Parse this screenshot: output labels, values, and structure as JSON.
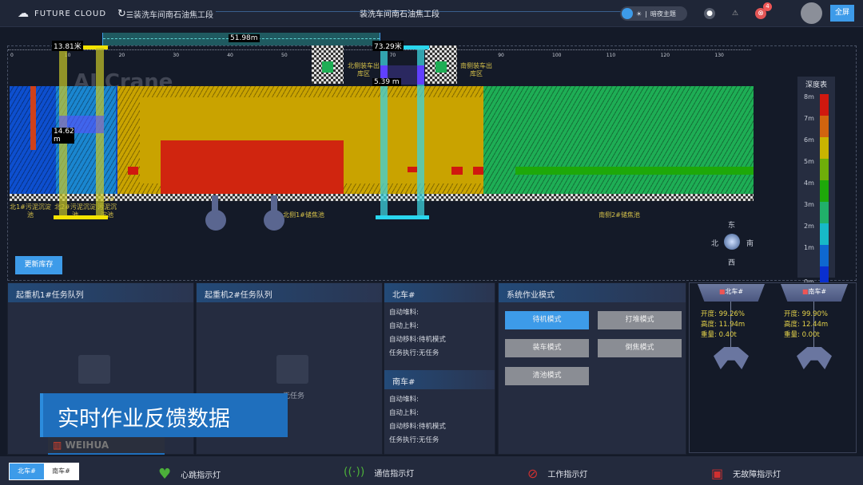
{
  "header": {
    "brand": "FUTURE CLOUD",
    "breadcrumb": "☰装洗车间南石油焦工段",
    "center_title": "装洗车间南石油焦工段",
    "theme_label": "暗夜主题",
    "alert_badge": "4",
    "fullscreen": "全屏"
  },
  "map": {
    "watermark": "AI Crane",
    "ticks": [
      "0",
      "10",
      "20",
      "30",
      "40",
      "50",
      "60",
      "70",
      "80",
      "90",
      "100",
      "110",
      "120",
      "130"
    ],
    "distance": "51.98m",
    "crane1": {
      "position": "13.81米",
      "height": "14.62 m",
      "color": "#f5e400"
    },
    "crane2": {
      "position": "73.29米",
      "height": "5.39 m",
      "color": "#29d6ee"
    },
    "zones": {
      "north_load": "北侧装车出库区",
      "south_load": "南侧装车出库区",
      "north_pool1": "北1#污泥沉淀池",
      "north_pool2": "北2#污泥沉淀池",
      "north_pool3_top": "北3#",
      "north_pool3": "污泥沉淀池",
      "north_store": "北侧1#储焦池",
      "south_store": "南侧2#储焦池"
    },
    "update_button": "更新库存",
    "compass": {
      "east": "东",
      "west": "西",
      "north": "北",
      "south": "南"
    }
  },
  "legend": {
    "title": "深度表",
    "levels": [
      {
        "label": "8m",
        "color": "#d0180f"
      },
      {
        "label": "7m",
        "color": "#d1640f"
      },
      {
        "label": "6m",
        "color": "#c9b400"
      },
      {
        "label": "5m",
        "color": "#6fae0a"
      },
      {
        "label": "4m",
        "color": "#1ea80a"
      },
      {
        "label": "3m",
        "color": "#21b06a"
      },
      {
        "label": "2m",
        "color": "#17b9c8"
      },
      {
        "label": "1m",
        "color": "#0e68d0"
      },
      {
        "label": "0m",
        "color": "#0a2fcf"
      }
    ]
  },
  "panels": {
    "queue1": {
      "title": "起重机1#任务队列"
    },
    "queue2": {
      "title": "起重机2#任务队列",
      "empty": "无任务"
    },
    "north": {
      "title": "北车#",
      "rows": [
        "自动堆料:",
        "自动上料:",
        "自动移料:待机模式",
        "任务执行:无任务"
      ]
    },
    "south": {
      "title": "南车#",
      "rows": [
        "自动堆料:",
        "自动上料:",
        "自动移料:待机模式",
        "任务执行:无任务"
      ]
    },
    "modes": {
      "title": "系统作业模式",
      "buttons": [
        "待机模式",
        "打堆模式",
        "装车模式",
        "倒焦模式",
        "清池模式"
      ],
      "active": "待机模式"
    },
    "cranes": [
      {
        "name": "北车#",
        "open": "开度: 99.26%",
        "height": "高度: 11.94m",
        "weight": "重量: 0.40t"
      },
      {
        "name": "南车#",
        "open": "开度: 99.90%",
        "height": "高度: 12.44m",
        "weight": "重量: 0.00t"
      }
    ]
  },
  "caption": {
    "text": "实时作业反馈数据",
    "logo": "WEIHUA"
  },
  "footer": {
    "toggle": [
      "北车#",
      "南车#"
    ],
    "indicators": [
      "心跳指示灯",
      "通信指示灯",
      "工作指示灯",
      "无故障指示灯"
    ]
  }
}
